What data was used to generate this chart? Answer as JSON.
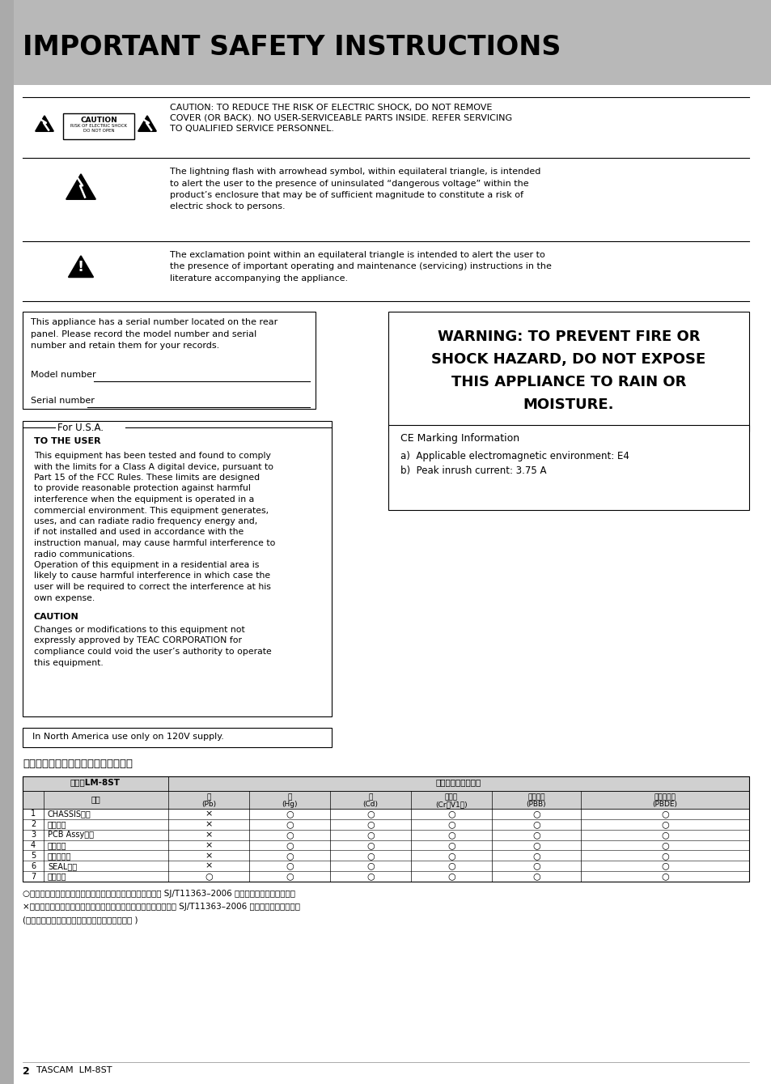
{
  "title": "IMPORTANT SAFETY INSTRUCTIONS",
  "title_bg": "#b8b8b8",
  "bg_color": "#ffffff",
  "caution_text1_lines": [
    "CAUTION: TO REDUCE THE RISK OF ELECTRIC SHOCK, DO NOT REMOVE",
    "COVER (OR BACK). NO USER-SERVICEABLE PARTS INSIDE. REFER SERVICING",
    "TO QUALIFIED SERVICE PERSONNEL."
  ],
  "lightning_text_lines": [
    "The lightning flash with arrowhead symbol, within equilateral triangle, is intended",
    "to alert the user to the presence of uninsulated “dangerous voltage” within the",
    "product’s enclosure that may be of sufficient magnitude to constitute a risk of",
    "electric shock to persons."
  ],
  "exclamation_text_lines": [
    "The exclamation point within an equilateral triangle is intended to alert the user to",
    "the presence of important operating and maintenance (servicing) instructions in the",
    "literature accompanying the appliance."
  ],
  "serial_box_lines": [
    "This appliance has a serial number located on the rear",
    "panel. Please record the model number and serial",
    "number and retain them for your records."
  ],
  "model_label": "Model number",
  "serial_label": "Serial number",
  "warning_lines": [
    "WARNING: TO PREVENT FIRE OR",
    "SHOCK HAZARD, DO NOT EXPOSE",
    "THIS APPLIANCE TO RAIN OR",
    "MOISTURE."
  ],
  "ce_title": "CE Marking Information",
  "ce_a": "a)  Applicable electromagnetic environment: E4",
  "ce_b": "b)  Peak inrush current: 3.75 A",
  "usa_title": "For U.S.A.",
  "usa_user": "TO THE USER",
  "usa_para1_lines": [
    "This equipment has been tested and found to comply",
    "with the limits for a Class A digital device, pursuant to",
    "Part 15 of the FCC Rules. These limits are designed",
    "to provide reasonable protection against harmful",
    "interference when the equipment is operated in a",
    "commercial environment. This equipment generates,",
    "uses, and can radiate radio frequency energy and,",
    "if not installed and used in accordance with the",
    "instruction manual, may cause harmful interference to",
    "radio communications.",
    "Operation of this equipment in a residential area is",
    "likely to cause harmful interference in which case the",
    "user will be required to correct the interference at his",
    "own expense."
  ],
  "usa_caution_head": "CAUTION",
  "usa_caution_lines": [
    "Changes or modifications to this equipment not",
    "expressly approved by TEAC CORPORATION for",
    "compliance could void the user’s authority to operate",
    "this equipment."
  ],
  "north_america": "In North America use only on 120V supply.",
  "chinese_title": "产品有毒有害物质或元素的名称及含量",
  "table_machine": "机种：LM-8ST",
  "table_harmful_header": "有害有害物质或元素",
  "table_col_name": "晶名",
  "table_col_headers": [
    [
      "铅",
      "(Pb)"
    ],
    [
      "汞",
      "(Hg)"
    ],
    [
      "镟",
      "(Cd)"
    ],
    [
      "六价铬",
      "(Cr（V1）)"
    ],
    [
      "多渴联苯",
      "(PBB)"
    ],
    [
      "多渴二苯醚",
      "(PBDE)"
    ]
  ],
  "table_rows": [
    [
      "1",
      "CHASSIS部件",
      "×",
      "○",
      "○",
      "○",
      "○",
      "○"
    ],
    [
      "2",
      "线材部件",
      "×",
      "○",
      "○",
      "○",
      "○",
      "○"
    ],
    [
      "3",
      "PCB Assy部件",
      "×",
      "○",
      "○",
      "○",
      "○",
      "○"
    ],
    [
      "4",
      "电源部件",
      "×",
      "○",
      "○",
      "○",
      "○",
      "○"
    ],
    [
      "5",
      "附属品部件",
      "×",
      "○",
      "○",
      "○",
      "○",
      "○"
    ],
    [
      "6",
      "SEAL部件",
      "×",
      "○",
      "○",
      "○",
      "○",
      "○"
    ],
    [
      "7",
      "包装部件",
      "○",
      "○",
      "○",
      "○",
      "○",
      "○"
    ]
  ],
  "table_note1": "○：表示该有毒有害物质在该部件所有均质材料中的含量均在 SJ/T11363–2006 标准规定的限量要求以下。",
  "table_note2": "×：表示该有毒有害物质至少在该部件的某一均质材料中的含量超出 SJ/T11363–2006 标准规定的限量要求。",
  "table_note3": "(针对现在代替技术困难的电子部品及合金中的铁 )"
}
